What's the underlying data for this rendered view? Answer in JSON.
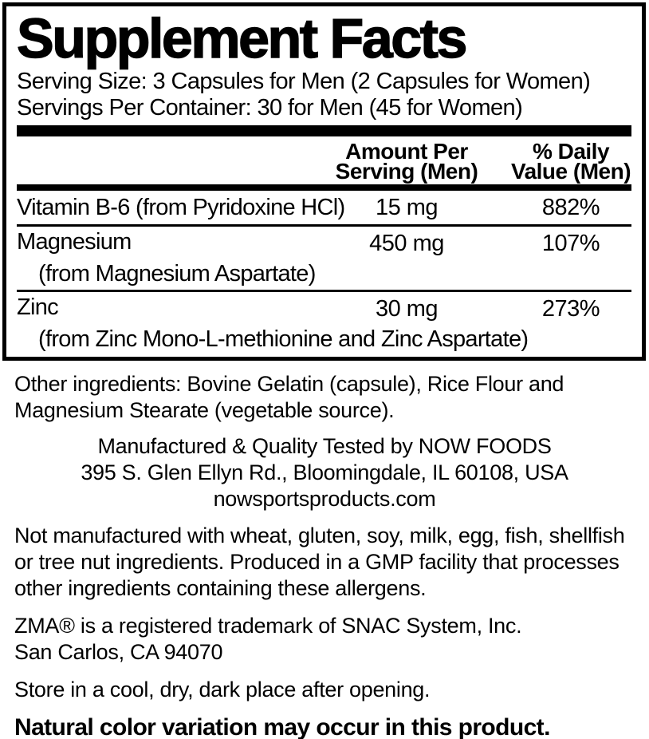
{
  "panel": {
    "title": "Supplement Facts",
    "serving_size": "Serving Size: 3 Capsules for Men (2 Capsules for Women)",
    "servings_per_container": "Servings Per Container: 30 for Men (45 for Women)",
    "columns": {
      "amount_line1": "Amount Per",
      "amount_line2": "Serving (Men)",
      "dv_line1": "% Daily",
      "dv_line2": "Value (Men)"
    },
    "rows": [
      {
        "name": "Vitamin B-6 (from Pyridoxine HCl)",
        "sub": "",
        "amount": "15 mg",
        "dv": "882%"
      },
      {
        "name": "Magnesium",
        "sub": "(from Magnesium Aspartate)",
        "amount": "450 mg",
        "dv": "107%"
      },
      {
        "name": "Zinc",
        "sub": "(from Zinc Mono-L-methionine and Zinc Aspartate)",
        "amount": "30 mg",
        "dv": "273%"
      }
    ]
  },
  "footer": {
    "other_ingredients": "Other ingredients: Bovine Gelatin (capsule), Rice Flour and Magnesium Stearate (vegetable source).",
    "manufacturer_line1": "Manufactured & Quality Tested by NOW FOODS",
    "manufacturer_line2": "395 S. Glen Ellyn Rd., Bloomingdale, IL 60108, USA",
    "manufacturer_line3": "nowsportsproducts.com",
    "allergen_statement": "Not manufactured with wheat, gluten, soy, milk, egg, fish, shellfish or tree nut ingredients. Produced in a GMP facility that processes other ingredients containing these allergens.",
    "trademark_line1": "ZMA® is a registered trademark of SNAC System, Inc.",
    "trademark_line2": "San Carlos, CA 94070",
    "storage": "Store in a cool, dry, dark place after opening.",
    "color_note": "Natural color variation may occur in this product."
  },
  "colors": {
    "text": "#000000",
    "background": "#ffffff"
  }
}
